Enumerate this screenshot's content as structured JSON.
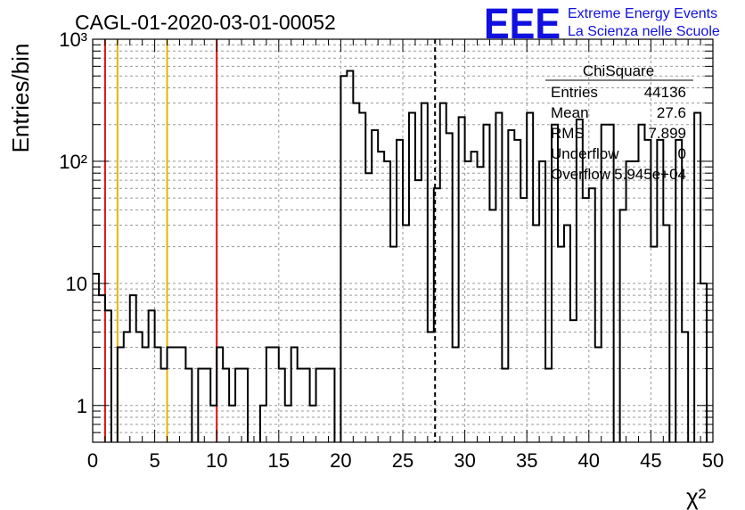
{
  "chart_data": {
    "type": "histogram",
    "title": "CAGL-01-2020-03-01-00052",
    "xlabel": "χ²",
    "ylabel": "Entries/bin",
    "xlim": [
      0,
      50
    ],
    "ylim": [
      0.5,
      1000
    ],
    "yscale": "log",
    "grid": true,
    "bin_width": 0.5,
    "x_ticks": [
      0,
      5,
      10,
      15,
      20,
      25,
      30,
      35,
      40,
      45,
      50
    ],
    "y_ticks": [
      {
        "value": 1,
        "label": "1"
      },
      {
        "value": 10,
        "label": "10"
      },
      {
        "value": 100,
        "label": "10²"
      },
      {
        "value": 1000,
        "label": "10³"
      }
    ],
    "values": [
      12,
      8,
      6,
      0,
      3,
      4,
      8,
      4,
      3,
      6,
      3,
      2,
      3,
      3,
      3,
      2,
      0,
      2,
      2,
      1,
      3,
      2,
      1,
      2,
      2,
      0,
      0,
      1,
      3,
      3,
      2,
      1,
      3,
      2,
      2,
      1,
      2,
      2,
      2,
      0,
      500,
      550,
      300,
      250,
      80,
      180,
      120,
      100,
      20,
      150,
      30,
      250,
      70,
      300,
      4,
      60,
      300,
      170,
      3,
      230,
      100,
      120,
      90,
      200,
      40,
      250,
      2,
      180,
      150,
      50,
      250,
      30,
      100,
      2,
      200,
      20,
      30,
      5,
      220,
      50,
      60,
      3,
      200,
      200,
      0,
      40,
      100,
      100,
      200,
      150,
      20,
      150,
      30,
      0,
      150,
      4,
      0,
      250,
      10,
      0
    ],
    "vertical_lines": [
      {
        "x": 1,
        "color": "#dd1111",
        "style": "solid"
      },
      {
        "x": 2,
        "color": "#e8b400",
        "style": "solid"
      },
      {
        "x": 6,
        "color": "#e8b400",
        "style": "solid"
      },
      {
        "x": 10,
        "color": "#dd1111",
        "style": "solid"
      },
      {
        "x": 27.6,
        "color": "#000000",
        "style": "dashed"
      }
    ],
    "stats_box": {
      "name": "ChiSquare",
      "rows": [
        {
          "label": "Entries",
          "value": "44136"
        },
        {
          "label": "Mean",
          "value": "27.6"
        },
        {
          "label": "RMS",
          "value": "7.899"
        },
        {
          "label": "Underflow",
          "value": "0"
        },
        {
          "label": "Overflow",
          "value": "5.945e+04"
        }
      ]
    }
  },
  "logo": {
    "text": "EEE",
    "line1": "Extreme Energy Events",
    "line2": "La Scienza nelle Scuole",
    "color": "#1010e0"
  }
}
